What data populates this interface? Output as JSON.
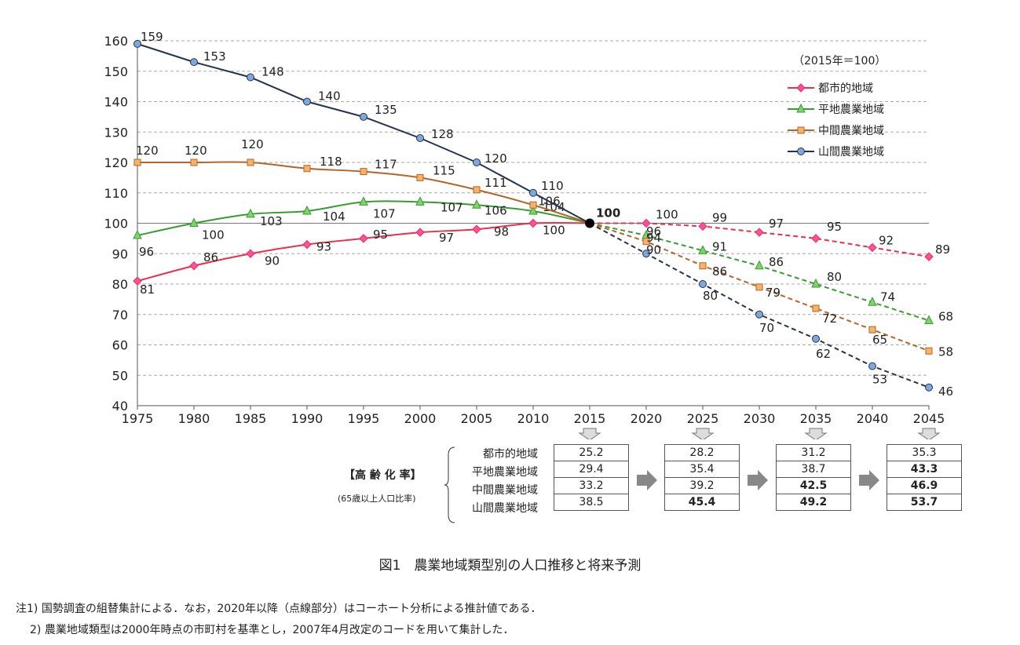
{
  "chart_data": {
    "type": "line",
    "x": [
      1975,
      1980,
      1985,
      1990,
      1995,
      2000,
      2005,
      2010,
      2015,
      2020,
      2025,
      2030,
      2035,
      2040,
      2045
    ],
    "ylim": [
      40,
      160
    ],
    "yticks": [
      40,
      50,
      60,
      70,
      80,
      90,
      100,
      110,
      120,
      130,
      140,
      150,
      160
    ],
    "grid": true,
    "projection_start": 2015,
    "legend_title": "（2015年＝100）",
    "legend_position": "top-right",
    "center_label": "100",
    "series": [
      {
        "name": "都市的地域",
        "color": "#e8304a",
        "marker": "diamond",
        "marker_color": "#ff4fa3",
        "values": [
          81,
          86,
          90,
          93,
          95,
          97,
          98,
          100,
          100,
          100,
          99,
          97,
          95,
          92,
          89
        ]
      },
      {
        "name": "平地農業地域",
        "color": "#3a9a34",
        "marker": "triangle",
        "marker_color": "#7fd36b",
        "values": [
          96,
          100,
          103,
          104,
          107,
          107,
          106,
          104,
          100,
          96,
          91,
          86,
          80,
          74,
          68
        ]
      },
      {
        "name": "中間農業地域",
        "color": "#b5642a",
        "marker": "square",
        "marker_color": "#f5b26b",
        "values": [
          120,
          120,
          120,
          118,
          117,
          115,
          111,
          106,
          100,
          94,
          86,
          79,
          72,
          65,
          58
        ]
      },
      {
        "name": "山間農業地域",
        "color": "#24344f",
        "marker": "circle",
        "marker_color": "#7fa7d9",
        "values": [
          159,
          153,
          148,
          140,
          135,
          128,
          120,
          110,
          100,
          90,
          80,
          70,
          62,
          53,
          46
        ]
      }
    ]
  },
  "aging": {
    "title": "【高 齢 化 率】",
    "subtitle": "(65歳以上人口比率)",
    "row_labels": [
      "都市的地域",
      "平地農業地域",
      "中間農業地域",
      "山間農業地域"
    ],
    "columns": [
      {
        "year": "2015",
        "values": [
          "25.2",
          "29.4",
          "33.2",
          "38.5"
        ],
        "bold": [
          false,
          false,
          false,
          false
        ]
      },
      {
        "year": "2025",
        "values": [
          "28.2",
          "35.4",
          "39.2",
          "45.4"
        ],
        "bold": [
          false,
          false,
          false,
          true
        ]
      },
      {
        "year": "2035",
        "values": [
          "31.2",
          "38.7",
          "42.5",
          "49.2"
        ],
        "bold": [
          false,
          false,
          true,
          true
        ]
      },
      {
        "year": "2045",
        "values": [
          "35.3",
          "43.3",
          "46.9",
          "53.7"
        ],
        "bold": [
          false,
          true,
          true,
          true
        ]
      }
    ]
  },
  "caption": "図1　農業地域類型別の人口推移と将来予測",
  "notes": [
    "注1) 国勢調査の組替集計による．なお，2020年以降（点線部分）はコーホート分析による推計値である．",
    "2) 農業地域類型は2000年時点の市町村を基準とし，2007年4月改定のコードを用いて集計した．"
  ]
}
